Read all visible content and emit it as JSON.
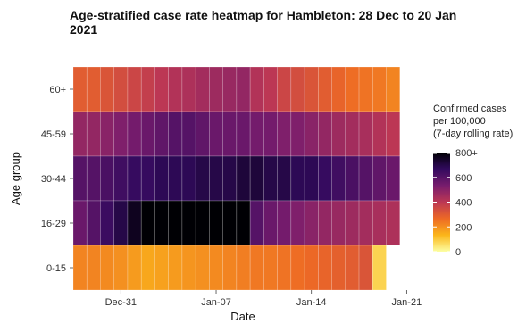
{
  "chart_data": {
    "type": "heatmap",
    "title_line1": "Age-stratified case rate heatmap for Hambleton: 28 Dec to 20 Jan",
    "title_line2": "2021",
    "xlabel": "Date",
    "ylabel": "Age group",
    "x_ticks": [
      {
        "date": "2020-12-31",
        "label": "Dec-31"
      },
      {
        "date": "2021-01-07",
        "label": "Jan-07"
      },
      {
        "date": "2021-01-14",
        "label": "Jan-14"
      },
      {
        "date": "2021-01-21",
        "label": "Jan-21"
      }
    ],
    "dates": [
      "2020-12-28",
      "2020-12-29",
      "2020-12-30",
      "2020-12-31",
      "2021-01-01",
      "2021-01-02",
      "2021-01-03",
      "2021-01-04",
      "2021-01-05",
      "2021-01-06",
      "2021-01-07",
      "2021-01-08",
      "2021-01-09",
      "2021-01-10",
      "2021-01-11",
      "2021-01-12",
      "2021-01-13",
      "2021-01-14",
      "2021-01-15",
      "2021-01-16",
      "2021-01-17",
      "2021-01-18",
      "2021-01-19",
      "2021-01-20"
    ],
    "age_groups": [
      "60+",
      "45-59",
      "30-44",
      "16-29",
      "0-15"
    ],
    "values": [
      [
        300,
        300,
        320,
        340,
        360,
        380,
        400,
        420,
        430,
        450,
        460,
        470,
        480,
        420,
        400,
        360,
        340,
        320,
        300,
        280,
        260,
        250,
        240,
        220
      ],
      [
        480,
        480,
        500,
        520,
        540,
        560,
        580,
        600,
        600,
        580,
        560,
        560,
        560,
        540,
        540,
        520,
        520,
        500,
        480,
        460,
        450,
        440,
        420,
        400
      ],
      [
        600,
        600,
        620,
        640,
        660,
        660,
        680,
        680,
        680,
        700,
        700,
        700,
        720,
        720,
        700,
        700,
        680,
        680,
        660,
        640,
        620,
        600,
        580,
        560
      ],
      [
        560,
        600,
        650,
        700,
        760,
        820,
        860,
        900,
        900,
        900,
        900,
        900,
        860,
        600,
        560,
        540,
        520,
        500,
        480,
        470,
        460,
        450,
        440,
        430
      ],
      [
        220,
        220,
        210,
        200,
        180,
        160,
        170,
        180,
        190,
        200,
        210,
        220,
        230,
        240,
        240,
        250,
        260,
        270,
        280,
        290,
        300,
        320,
        80,
        null
      ]
    ],
    "xlim": [
      "2020-12-27T12:00",
      "2021-01-21T12:00"
    ],
    "legend": {
      "title_lines": [
        "Confirmed cases",
        "per 100,000",
        "(7-day rolling rate)"
      ],
      "ticks": [
        {
          "value": 0,
          "label": "0"
        },
        {
          "value": 200,
          "label": "200"
        },
        {
          "value": 400,
          "label": "400"
        },
        {
          "value": 600,
          "label": "600"
        },
        {
          "value": 800,
          "label": "800+"
        }
      ],
      "range": [
        0,
        800
      ],
      "placement": "right"
    },
    "colorscale": [
      "#fcffa4",
      "#fbb61a",
      "#ed6925",
      "#bc3754",
      "#781c6d",
      "#320a5e",
      "#000004"
    ],
    "grid": true
  }
}
